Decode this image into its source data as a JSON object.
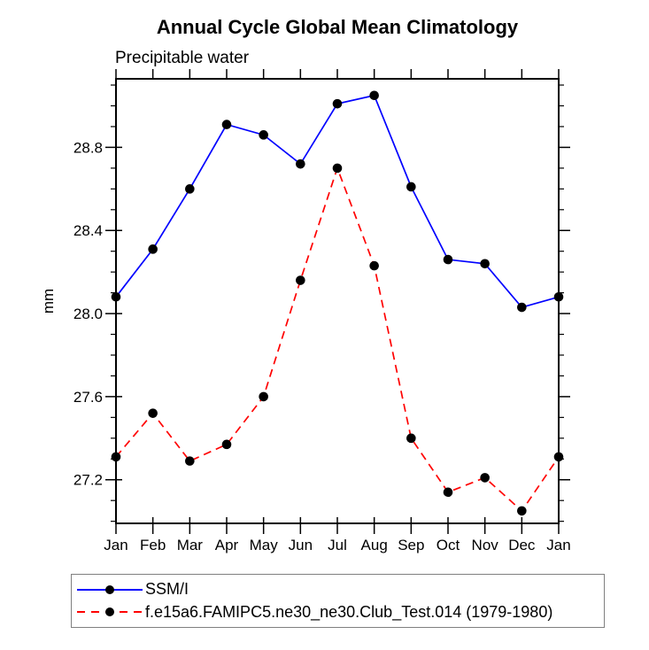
{
  "page": {
    "background_color": "#ffffff"
  },
  "chart_data": {
    "type": "line",
    "title": "Annual Cycle Global Mean Climatology",
    "subtitle": "Precipitable water",
    "xlabel": "",
    "ylabel": "mm",
    "categories": [
      "Jan",
      "Feb",
      "Mar",
      "Apr",
      "May",
      "Jun",
      "Jul",
      "Aug",
      "Sep",
      "Oct",
      "Nov",
      "Dec",
      "Jan"
    ],
    "ylim": [
      26.99,
      29.13
    ],
    "y_major_ticks": [
      27.2,
      27.6,
      28.0,
      28.4,
      28.8
    ],
    "y_tick_labels": [
      "27.2",
      "27.6",
      "28.0",
      "28.4",
      "28.8"
    ],
    "y_minor_step": 0.1,
    "grid": false,
    "legend_position": "bottom-left",
    "axis_color": "#000000",
    "text_color": "#000000",
    "series": [
      {
        "name": "SSM/I",
        "color": "#0000ff",
        "line_style": "solid",
        "marker": "filled-circle",
        "marker_color": "#000000",
        "values": [
          28.08,
          28.31,
          28.6,
          28.91,
          28.86,
          28.72,
          29.01,
          29.05,
          28.61,
          28.26,
          28.24,
          28.03,
          28.08
        ]
      },
      {
        "name": "f.e15a6.FAMIPC5.ne30_ne30.Club_Test.014 (1979-1980)",
        "color": "#ff0000",
        "line_style": "dashed",
        "marker": "filled-circle",
        "marker_color": "#000000",
        "values": [
          27.31,
          27.52,
          27.29,
          27.37,
          27.6,
          28.16,
          28.7,
          28.23,
          27.4,
          27.14,
          27.21,
          27.05,
          27.31
        ]
      }
    ]
  }
}
